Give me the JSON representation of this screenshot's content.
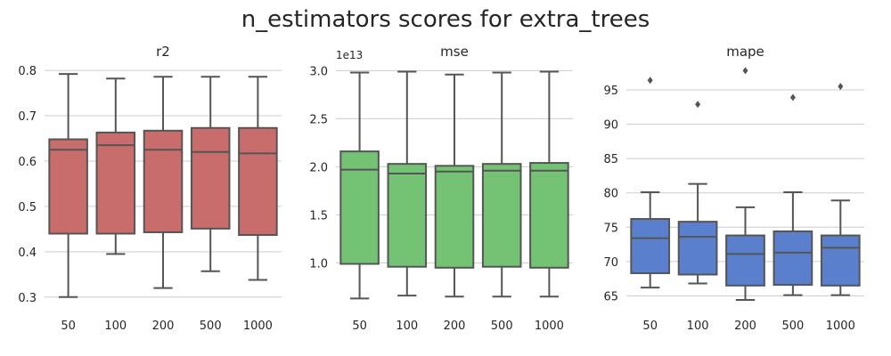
{
  "figure": {
    "title": "n_estimators scores for extra_trees"
  },
  "chart_data": [
    {
      "type": "box",
      "title": "r2",
      "xlabel": "",
      "ylabel": "",
      "categories": [
        "50",
        "100",
        "200",
        "500",
        "1000"
      ],
      "ylim": [
        0.28,
        0.81
      ],
      "yticks": [
        0.3,
        0.4,
        0.5,
        0.6,
        0.7,
        0.8
      ],
      "ytick_labels": [
        "0.3",
        "0.4",
        "0.5",
        "0.6",
        "0.7",
        "0.8"
      ],
      "offset_label": "",
      "color": "#c96c6c",
      "grid": true,
      "boxes": [
        {
          "min": 0.3,
          "q1": 0.44,
          "median": 0.625,
          "q3": 0.648,
          "max": 0.792,
          "fliers": []
        },
        {
          "min": 0.395,
          "q1": 0.44,
          "median": 0.635,
          "q3": 0.663,
          "max": 0.782,
          "fliers": []
        },
        {
          "min": 0.32,
          "q1": 0.443,
          "median": 0.625,
          "q3": 0.667,
          "max": 0.786,
          "fliers": []
        },
        {
          "min": 0.357,
          "q1": 0.451,
          "median": 0.62,
          "q3": 0.673,
          "max": 0.786,
          "fliers": []
        },
        {
          "min": 0.338,
          "q1": 0.437,
          "median": 0.617,
          "q3": 0.673,
          "max": 0.786,
          "fliers": []
        }
      ]
    },
    {
      "type": "box",
      "title": "mse",
      "xlabel": "",
      "ylabel": "",
      "categories": [
        "50",
        "100",
        "200",
        "500",
        "1000"
      ],
      "ylim": [
        0.55,
        3.05
      ],
      "yticks": [
        1.0,
        1.5,
        2.0,
        2.5,
        3.0
      ],
      "ytick_labels": [
        "1.0",
        "1.5",
        "2.0",
        "2.5",
        "3.0"
      ],
      "offset_label": "1e13",
      "color": "#74c274",
      "grid": true,
      "boxes": [
        {
          "min": 0.63,
          "q1": 0.99,
          "median": 1.97,
          "q3": 2.16,
          "max": 2.98,
          "fliers": []
        },
        {
          "min": 0.66,
          "q1": 0.96,
          "median": 1.93,
          "q3": 2.03,
          "max": 2.99,
          "fliers": []
        },
        {
          "min": 0.65,
          "q1": 0.95,
          "median": 1.95,
          "q3": 2.01,
          "max": 2.96,
          "fliers": []
        },
        {
          "min": 0.65,
          "q1": 0.96,
          "median": 1.96,
          "q3": 2.03,
          "max": 2.98,
          "fliers": []
        },
        {
          "min": 0.65,
          "q1": 0.95,
          "median": 1.96,
          "q3": 2.04,
          "max": 2.99,
          "fliers": []
        }
      ]
    },
    {
      "type": "box",
      "title": "mape",
      "xlabel": "",
      "ylabel": "",
      "categories": [
        "50",
        "100",
        "200",
        "500",
        "1000"
      ],
      "ylim": [
        63.5,
        98.5
      ],
      "yticks": [
        65,
        70,
        75,
        80,
        85,
        90,
        95
      ],
      "ytick_labels": [
        "65",
        "70",
        "75",
        "80",
        "85",
        "90",
        "95"
      ],
      "offset_label": "",
      "color": "#5a7fcc",
      "grid": true,
      "boxes": [
        {
          "min": 66.2,
          "q1": 68.3,
          "median": 73.4,
          "q3": 76.2,
          "max": 80.1,
          "fliers": [
            96.4
          ]
        },
        {
          "min": 66.8,
          "q1": 68.1,
          "median": 73.6,
          "q3": 75.8,
          "max": 81.3,
          "fliers": [
            92.9
          ]
        },
        {
          "min": 64.4,
          "q1": 66.5,
          "median": 71.1,
          "q3": 73.8,
          "max": 77.9,
          "fliers": [
            97.8
          ]
        },
        {
          "min": 65.1,
          "q1": 66.6,
          "median": 71.3,
          "q3": 74.4,
          "max": 80.1,
          "fliers": [
            93.9
          ]
        },
        {
          "min": 65.1,
          "q1": 66.5,
          "median": 72.0,
          "q3": 73.8,
          "max": 78.9,
          "fliers": [
            95.5
          ]
        }
      ]
    }
  ]
}
